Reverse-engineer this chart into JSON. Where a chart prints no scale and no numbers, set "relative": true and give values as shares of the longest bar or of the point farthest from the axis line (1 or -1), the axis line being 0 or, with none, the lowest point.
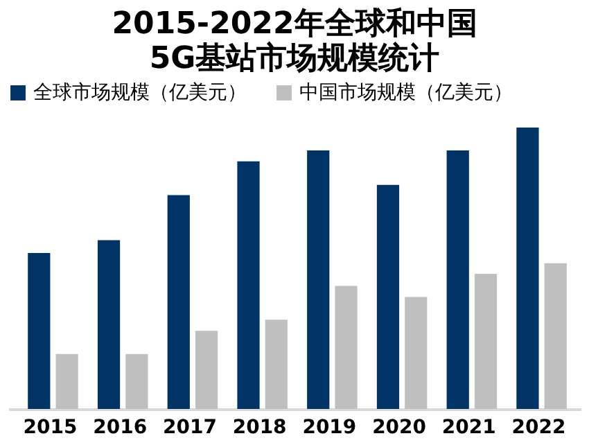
{
  "chart_data": {
    "type": "bar",
    "title": "2015-2022年全球和中国",
    "subtitle": "5G基站市场规模统计",
    "relative": true,
    "legend": "top",
    "categories": [
      "2015",
      "2016",
      "2017",
      "2018",
      "2019",
      "2020",
      "2021",
      "2022"
    ],
    "series": [
      {
        "name": "全球市场规模（亿美元）",
        "color": "#003366",
        "values": [
          0.554,
          0.6,
          0.76,
          0.88,
          0.919,
          0.796,
          0.919,
          1
        ]
      },
      {
        "name": "中国市场规模（亿美元）",
        "color": "#bfbfbf",
        "values": [
          0.195,
          0.195,
          0.278,
          0.317,
          0.437,
          0.398,
          0.48,
          0.518
        ]
      }
    ]
  }
}
